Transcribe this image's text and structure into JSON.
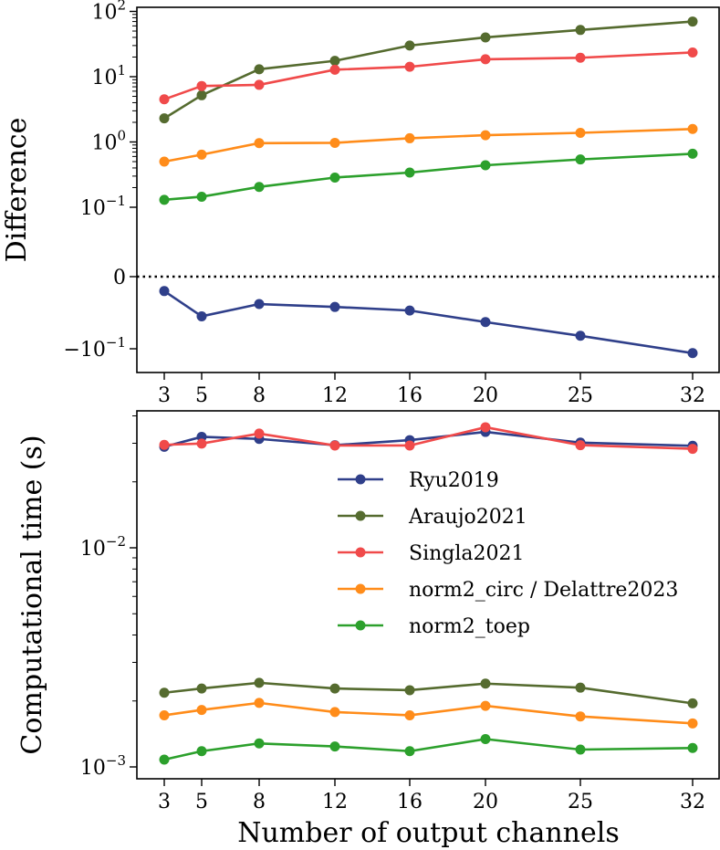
{
  "chart_data": [
    {
      "type": "line",
      "panel": "top",
      "ylabel": "Difference",
      "xlabel": "",
      "yscale": "symlog",
      "linthresh": 0.1,
      "x": [
        3,
        5,
        8,
        12,
        16,
        20,
        25,
        32
      ],
      "x_tick_labels": [
        "3",
        "5",
        "8",
        "12",
        "16",
        "20",
        "25",
        "32"
      ],
      "y_ticks": [
        {
          "value": 100,
          "base": "10",
          "exp": "2"
        },
        {
          "value": 10,
          "base": "10",
          "exp": "1"
        },
        {
          "value": 1,
          "base": "10",
          "exp": "0"
        },
        {
          "value": 0.1,
          "base": "10",
          "exp": "−1"
        },
        {
          "value": 0,
          "base": "0",
          "exp": ""
        },
        {
          "value": -0.1,
          "base": "−10",
          "exp": "−1"
        }
      ],
      "zero_line": "dotted",
      "series": [
        {
          "name": "Ryu2019",
          "color": "#2f3f8a",
          "values": [
            -0.02,
            -0.055,
            -0.038,
            -0.042,
            -0.047,
            -0.063,
            -0.082,
            -0.115
          ]
        },
        {
          "name": "Araujo2021",
          "color": "#556b2f",
          "values": [
            2.3,
            5.2,
            13,
            17.5,
            30,
            40,
            52,
            70
          ]
        },
        {
          "name": "Singla2021",
          "color": "#f04a4a",
          "values": [
            4.5,
            7.2,
            7.5,
            12.8,
            14.2,
            18.5,
            19.5,
            23.5
          ]
        },
        {
          "name": "norm2_circ / Delattre2023",
          "color": "#ff8c1a",
          "values": [
            0.5,
            0.64,
            0.96,
            0.97,
            1.14,
            1.27,
            1.38,
            1.58
          ]
        },
        {
          "name": "norm2_toep",
          "color": "#2ca02c",
          "values": [
            0.13,
            0.145,
            0.205,
            0.285,
            0.34,
            0.44,
            0.54,
            0.66
          ]
        }
      ]
    },
    {
      "type": "line",
      "panel": "bottom",
      "ylabel": "Computational time (s)",
      "xlabel": "Number of output channels",
      "yscale": "log",
      "ylim": [
        0.00095,
        0.04
      ],
      "x": [
        3,
        5,
        8,
        12,
        16,
        20,
        25,
        32
      ],
      "x_tick_labels": [
        "3",
        "5",
        "8",
        "12",
        "16",
        "20",
        "25",
        "32"
      ],
      "y_ticks": [
        {
          "value": 0.01,
          "base": "10",
          "exp": "−2"
        },
        {
          "value": 0.001,
          "base": "10",
          "exp": "−3"
        }
      ],
      "legend_position": "center-right",
      "series": [
        {
          "name": "Ryu2019",
          "color": "#2f3f8a",
          "values": [
            0.0289,
            0.0321,
            0.0314,
            0.0294,
            0.031,
            0.0338,
            0.0302,
            0.0292
          ]
        },
        {
          "name": "Araujo2021",
          "color": "#556b2f",
          "values": [
            0.00218,
            0.00228,
            0.00242,
            0.00228,
            0.00224,
            0.0024,
            0.0023,
            0.00195
          ]
        },
        {
          "name": "Singla2021",
          "color": "#f04a4a",
          "values": [
            0.0295,
            0.0299,
            0.0332,
            0.0293,
            0.0293,
            0.0355,
            0.0294,
            0.0283
          ]
        },
        {
          "name": "norm2_circ / Delattre2023",
          "color": "#ff8c1a",
          "values": [
            0.00172,
            0.00182,
            0.00196,
            0.00178,
            0.00172,
            0.0019,
            0.0017,
            0.00158
          ]
        },
        {
          "name": "norm2_toep",
          "color": "#2ca02c",
          "values": [
            0.00108,
            0.00118,
            0.00128,
            0.00124,
            0.00118,
            0.00134,
            0.0012,
            0.00122
          ]
        }
      ]
    }
  ]
}
